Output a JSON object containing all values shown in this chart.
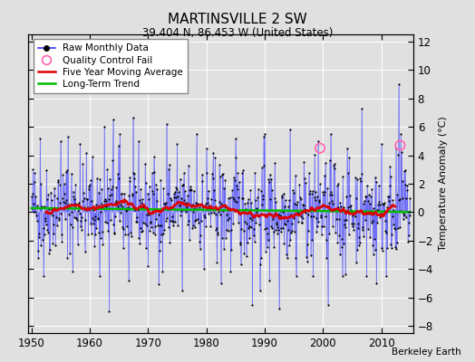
{
  "title": "MARTINSVILLE 2 SW",
  "subtitle": "39.404 N, 86.453 W (United States)",
  "ylabel": "Temperature Anomaly (°C)",
  "credit": "Berkeley Earth",
  "xlim": [
    1949.5,
    2015.5
  ],
  "ylim": [
    -8.5,
    12.5
  ],
  "yticks": [
    -8,
    -6,
    -4,
    -2,
    0,
    2,
    4,
    6,
    8,
    10,
    12
  ],
  "xticks": [
    1950,
    1960,
    1970,
    1980,
    1990,
    2000,
    2010
  ],
  "bg_color": "#e0e0e0",
  "plot_bg": "#e0e0e0",
  "line_color": "#3333ff",
  "stem_color": "#6666ff",
  "dot_color": "#000000",
  "ma_color": "#dd0000",
  "trend_color": "#00bb00",
  "qc_color": "#ff69b4",
  "qc_points": [
    [
      1999.5,
      4.5
    ],
    [
      2013.25,
      4.7
    ]
  ],
  "trend_y0": 0.25,
  "trend_y1": 0.05,
  "seed": 42
}
